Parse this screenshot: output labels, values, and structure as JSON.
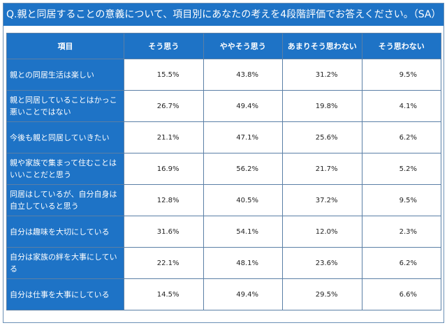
{
  "question": "Q.親と同居することの意義について、項目別にあなたの考えを4段階評価でお答えください。（SA）",
  "table": {
    "headers": [
      "項目",
      "そう思う",
      "ややそう思う",
      "あまりそう思わない",
      "そう思わない"
    ],
    "rows": [
      {
        "item": "親との同居生活は楽しい",
        "values": [
          "15.5%",
          "43.8%",
          "31.2%",
          "9.5%"
        ]
      },
      {
        "item": "親と同居していることはかっこ悪いことではない",
        "values": [
          "26.7%",
          "49.4%",
          "19.8%",
          "4.1%"
        ]
      },
      {
        "item": "今後も親と同居していきたい",
        "values": [
          "21.1%",
          "47.1%",
          "25.6%",
          "6.2%"
        ]
      },
      {
        "item": "親や家族で集まって住むことはいいことだと思う",
        "values": [
          "16.9%",
          "56.2%",
          "21.7%",
          "5.2%"
        ]
      },
      {
        "item": "同居はしているが、自分自身は自立していると思う",
        "values": [
          "12.8%",
          "40.5%",
          "37.2%",
          "9.5%"
        ]
      },
      {
        "item": "自分は趣味を大切にしている",
        "values": [
          "31.6%",
          "54.1%",
          "12.0%",
          "2.3%"
        ]
      },
      {
        "item": "自分は家族の絆を大事にしている",
        "values": [
          "22.1%",
          "48.1%",
          "23.6%",
          "6.2%"
        ]
      },
      {
        "item": "自分は仕事を大事にしている",
        "values": [
          "14.5%",
          "49.4%",
          "29.5%",
          "6.6%"
        ]
      }
    ]
  },
  "colors": {
    "header_blue": "#1e73c6",
    "border": "#5a7fa6"
  }
}
